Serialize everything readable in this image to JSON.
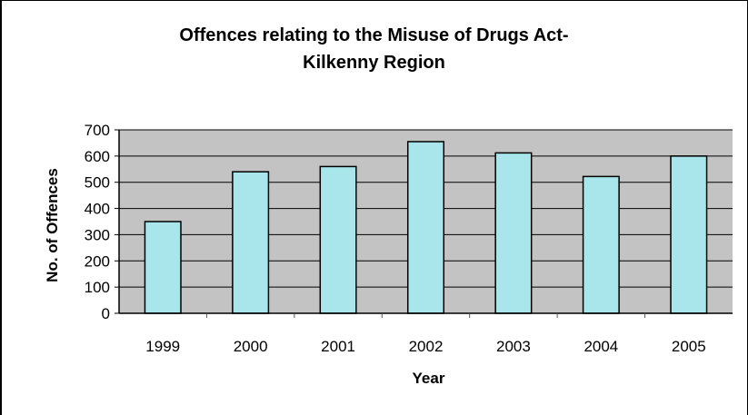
{
  "chart_data": {
    "type": "bar",
    "title_line1": "Offences relating to the Misuse of Drugs Act-",
    "title_line2": "Kilkenny Region",
    "xlabel": "Year",
    "ylabel": "No. of Offences",
    "categories": [
      "1999",
      "2000",
      "2001",
      "2002",
      "2003",
      "2004",
      "2005"
    ],
    "values": [
      350,
      540,
      560,
      655,
      612,
      522,
      600
    ],
    "ylim": [
      0,
      700
    ],
    "yticks": [
      "0",
      "100",
      "200",
      "300",
      "400",
      "500",
      "600",
      "700"
    ],
    "grid": true,
    "legend": "none",
    "colors": {
      "bar_fill": "#a8e6ec",
      "plot_bg": "#c3c3c3",
      "gridline": "#000000",
      "bar_stroke": "#000000"
    }
  }
}
